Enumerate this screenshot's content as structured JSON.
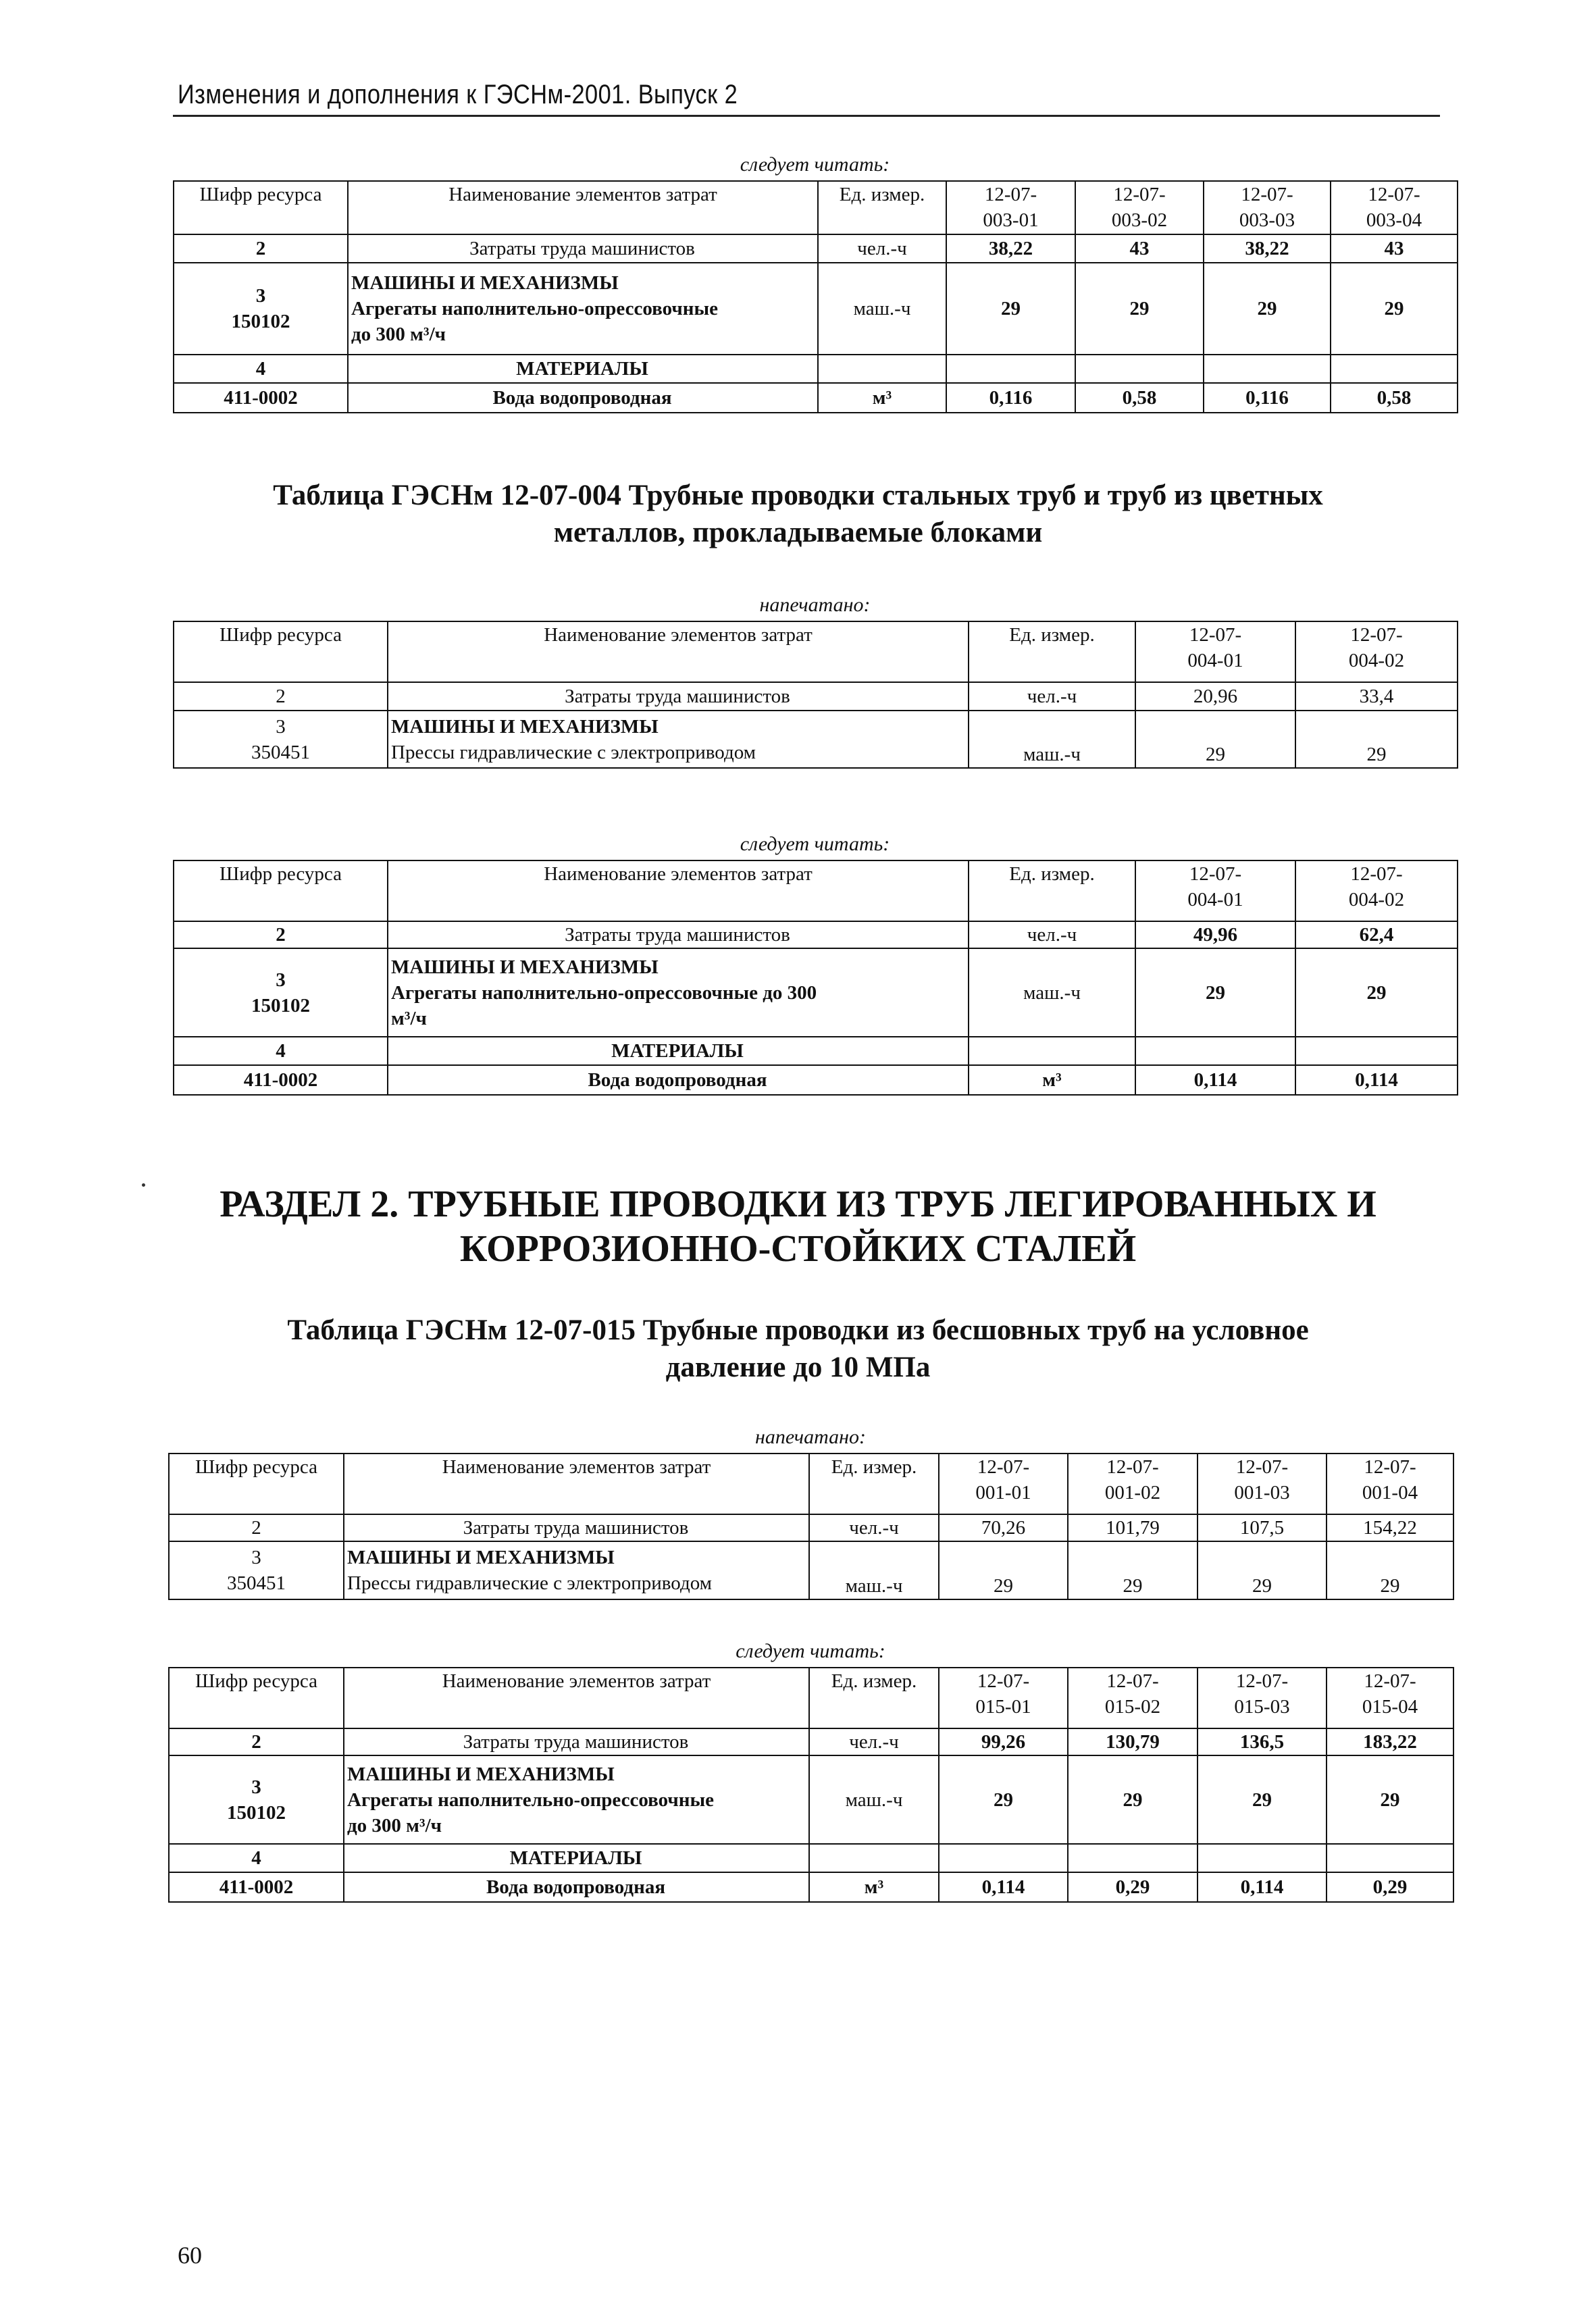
{
  "running_head": "Изменения и дополнения к ГЭСНм-2001. Выпуск 2",
  "page_number": "60",
  "headers": {
    "code": "Шифр ресурса",
    "name": "Наименование элементов затрат",
    "unit": "Ед. измер."
  },
  "table_004_title": [
    "Таблица ГЭСНм 12-07-004 Трубные проводки стальных труб и труб из цветных",
    "металлов, прокладываемые блоками"
  ],
  "section_title": [
    "РАЗДЕЛ 2. ТРУБНЫЕ ПРОВОДКИ ИЗ ТРУБ ЛЕГИРОВАННЫХ И",
    "КОРРОЗИОННО-СТОЙКИХ СТАЛЕЙ"
  ],
  "table_015_title": [
    "Таблица ГЭСНм 12-07-015 Трубные проводки из бесшовных труб на условное",
    "давление до 10 МПа"
  ],
  "tables": [
    {
      "caption": "следует читать:",
      "columns": [
        [
          "12-07-",
          "003-01"
        ],
        [
          "12-07-",
          "003-02"
        ],
        [
          "12-07-",
          "003-03"
        ],
        [
          "12-07-",
          "003-04"
        ]
      ],
      "rows": [
        {
          "code": [
            "2"
          ],
          "name": [
            "Затраты труда машинистов"
          ],
          "unit": "чел.-ч",
          "values": [
            "38,22",
            "43",
            "38,22",
            "43"
          ]
        },
        {
          "code": [
            "3",
            "150102"
          ],
          "name": [
            "МАШИНЫ И МЕХАНИЗМЫ",
            "Агрегаты наполнительно-опрессовочные",
            "до 300 м³/ч"
          ],
          "unit": "маш.-ч",
          "values": [
            "29",
            "29",
            "29",
            "29"
          ]
        },
        {
          "code": [
            "4"
          ],
          "name": [
            "МАТЕРИАЛЫ"
          ],
          "unit": "",
          "values": [
            "",
            "",
            "",
            ""
          ]
        },
        {
          "code": [
            "411-0002"
          ],
          "name": [
            "Вода водопроводная"
          ],
          "unit": "м³",
          "values": [
            "0,116",
            "0,58",
            "0,116",
            "0,58"
          ]
        }
      ]
    },
    {
      "caption": "напечатано:",
      "columns": [
        [
          "12-07-",
          "004-01"
        ],
        [
          "12-07-",
          "004-02"
        ]
      ],
      "rows": [
        {
          "code": [
            "2"
          ],
          "name": [
            "Затраты труда машинистов"
          ],
          "unit": "чел.-ч",
          "values": [
            "20,96",
            "33,4"
          ]
        },
        {
          "code": [
            "3",
            "350451"
          ],
          "name": [
            "МАШИНЫ И МЕХАНИЗМЫ",
            "Прессы гидравлические с электроприводом"
          ],
          "unit": "маш.-ч",
          "values": [
            "29",
            "29"
          ]
        }
      ]
    },
    {
      "caption": "следует читать:",
      "columns": [
        [
          "12-07-",
          "004-01"
        ],
        [
          "12-07-",
          "004-02"
        ]
      ],
      "rows": [
        {
          "code": [
            "2"
          ],
          "name": [
            "Затраты труда машинистов"
          ],
          "unit": "чел.-ч",
          "values": [
            "49,96",
            "62,4"
          ]
        },
        {
          "code": [
            "3",
            "150102"
          ],
          "name": [
            "МАШИНЫ И МЕХАНИЗМЫ",
            "Агрегаты наполнительно-опрессовочные до 300",
            "м³/ч"
          ],
          "unit": "маш.-ч",
          "values": [
            "29",
            "29"
          ]
        },
        {
          "code": [
            "4"
          ],
          "name": [
            "МАТЕРИАЛЫ"
          ],
          "unit": "",
          "values": [
            "",
            ""
          ]
        },
        {
          "code": [
            "411-0002"
          ],
          "name": [
            "Вода водопроводная"
          ],
          "unit": "м³",
          "values": [
            "0,114",
            "0,114"
          ]
        }
      ]
    },
    {
      "caption": "напечатано:",
      "columns": [
        [
          "12-07-",
          "001-01"
        ],
        [
          "12-07-",
          "001-02"
        ],
        [
          "12-07-",
          "001-03"
        ],
        [
          "12-07-",
          "001-04"
        ]
      ],
      "rows": [
        {
          "code": [
            "2"
          ],
          "name": [
            "Затраты труда машинистов"
          ],
          "unit": "чел.-ч",
          "values": [
            "70,26",
            "101,79",
            "107,5",
            "154,22"
          ]
        },
        {
          "code": [
            "3",
            "350451"
          ],
          "name": [
            "МАШИНЫ И МЕХАНИЗМЫ",
            "Прессы гидравлические с электроприводом"
          ],
          "unit": "маш.-ч",
          "values": [
            "29",
            "29",
            "29",
            "29"
          ]
        }
      ]
    },
    {
      "caption": "следует читать:",
      "columns": [
        [
          "12-07-",
          "015-01"
        ],
        [
          "12-07-",
          "015-02"
        ],
        [
          "12-07-",
          "015-03"
        ],
        [
          "12-07-",
          "015-04"
        ]
      ],
      "rows": [
        {
          "code": [
            "2"
          ],
          "name": [
            "Затраты труда машинистов"
          ],
          "unit": "чел.-ч",
          "values": [
            "99,26",
            "130,79",
            "136,5",
            "183,22"
          ]
        },
        {
          "code": [
            "3",
            "150102"
          ],
          "name": [
            "МАШИНЫ И МЕХАНИЗМЫ",
            "Агрегаты наполнительно-опрессовочные",
            "до 300 м³/ч"
          ],
          "unit": "маш.-ч",
          "values": [
            "29",
            "29",
            "29",
            "29"
          ]
        },
        {
          "code": [
            "4"
          ],
          "name": [
            "МАТЕРИАЛЫ"
          ],
          "unit": "",
          "values": [
            "",
            "",
            "",
            ""
          ]
        },
        {
          "code": [
            "411-0002"
          ],
          "name": [
            "Вода водопроводная"
          ],
          "unit": "м³",
          "values": [
            "0,114",
            "0,29",
            "0,114",
            "0,29"
          ]
        }
      ]
    }
  ]
}
